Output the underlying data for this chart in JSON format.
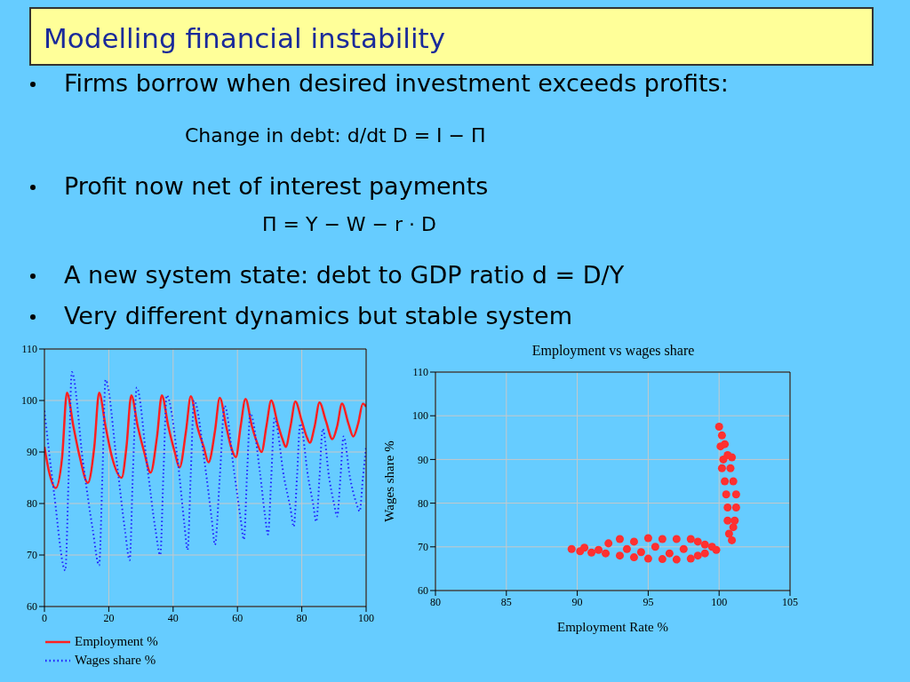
{
  "chart_data": [
    {
      "type": "other",
      "title": "Modelling financial instability",
      "annotations": [
        "Firms borrow when desired investment exceeds profits:",
        "Change in debt: d/dt D = I − Π",
        "Profit now net of interest payments",
        "Π = Y − W − r · D",
        "A new system state: debt to GDP ratio  d = D/Y",
        "Very different dynamics but stable system"
      ]
    },
    {
      "type": "line",
      "xlim": [
        0,
        100
      ],
      "xticks": [
        0,
        20,
        40,
        60,
        80,
        100
      ],
      "ylim": [
        60,
        110
      ],
      "yticks": [
        60,
        70,
        80,
        90,
        100,
        110
      ],
      "grid": true,
      "legend": "bottom",
      "series": [
        {
          "name": "Employment %",
          "color": "#ff2020",
          "line_style": "solid",
          "x": [
            0,
            1.5,
            3.5,
            5.5,
            7,
            9,
            11,
            13.5,
            15.5,
            17,
            19,
            21,
            24,
            25.5,
            27,
            29,
            31,
            33,
            35,
            36.5,
            38.5,
            40.5,
            42,
            44,
            45.5,
            47.5,
            49.5,
            51,
            53,
            54.5,
            56.5,
            58,
            59.5,
            61,
            62.5,
            64.5,
            66,
            67.5,
            69,
            70.5,
            72.5,
            74,
            75,
            76.5,
            78,
            80,
            81.5,
            82.5,
            84,
            85.5,
            87.5,
            89.5,
            91,
            92.5,
            94.5,
            96,
            97.5,
            99,
            100
          ],
          "values": [
            91,
            86,
            83,
            89,
            101.5,
            95,
            89,
            84,
            91,
            101.5,
            95,
            89,
            85,
            91,
            101,
            95,
            90,
            86,
            93,
            101,
            95,
            90,
            87,
            94,
            100.8,
            95,
            91,
            88,
            94,
            100.5,
            95,
            91,
            89,
            95,
            100.3,
            95,
            92,
            90,
            95,
            100,
            95.5,
            92.5,
            91,
            95,
            99.8,
            96,
            93,
            91.8,
            95,
            99.6,
            96,
            92.5,
            95,
            99.4,
            95.5,
            93,
            95.5,
            99.4,
            98.8
          ]
        },
        {
          "name": "Wages share %",
          "color": "#2020ff",
          "line_style": "dotted",
          "x": [
            0,
            3,
            6.5,
            7.5,
            8.5,
            12,
            15,
            17,
            18,
            19,
            22.5,
            25,
            26.5,
            27.5,
            28.7,
            32,
            34.5,
            36,
            37,
            38,
            41.5,
            43.5,
            44.5,
            45.5,
            46.5,
            50,
            52,
            53,
            54.5,
            56,
            59,
            61,
            62,
            63,
            64,
            67,
            68.5,
            69.5,
            70.5,
            71.5,
            74.5,
            76.5,
            77.5,
            78.5,
            79.5,
            82,
            83.5,
            84.5,
            85.5,
            86.5,
            88.5,
            90,
            91,
            92,
            93,
            95,
            97,
            98,
            99,
            100
          ],
          "values": [
            98,
            82,
            67,
            85,
            105.5,
            88,
            75,
            68,
            85,
            104,
            88,
            75,
            69,
            86,
            102.5,
            87,
            75,
            70,
            86,
            101,
            88,
            76,
            71,
            86,
            100,
            87,
            77,
            72,
            85,
            99,
            86,
            77,
            73,
            86,
            97.5,
            86,
            78,
            74,
            85,
            96.5,
            85,
            79,
            75.5,
            85,
            95.5,
            85,
            80,
            76.5,
            85,
            94.5,
            85,
            80,
            77.5,
            85,
            93,
            85,
            80,
            78.5,
            85,
            91
          ]
        }
      ]
    },
    {
      "type": "scatter",
      "title": "Employment vs wages share",
      "xlabel": "Employment Rate %",
      "ylabel": "Wages share %",
      "xlim": [
        80,
        105
      ],
      "xticks": [
        80,
        85,
        90,
        95,
        100,
        105
      ],
      "ylim": [
        60,
        110
      ],
      "yticks": [
        60,
        70,
        80,
        90,
        100,
        110
      ],
      "grid": true,
      "marker": "circle",
      "series": [
        {
          "color": "#ff3030",
          "x": [
            89.6,
            90.2,
            90.5,
            91,
            91.5,
            92,
            92.2,
            93,
            93,
            93.5,
            94,
            94,
            94.5,
            95,
            95,
            95.5,
            96,
            96,
            96.5,
            97,
            97,
            97.5,
            98,
            98,
            98.5,
            98.5,
            99,
            99,
            99.5,
            99.8,
            100,
            100.2,
            100.4,
            100.1,
            100.6,
            100.2,
            100.8,
            100.4,
            101,
            100.5,
            101.2,
            100.6,
            101.2,
            100.6,
            101.1,
            100.7,
            100.9,
            101,
            100.3,
            100.9
          ],
          "values": [
            69.5,
            69,
            69.8,
            68.7,
            69.3,
            68.5,
            70.8,
            71.8,
            68,
            69.5,
            71.2,
            67.6,
            68.8,
            72,
            67.3,
            70,
            71.8,
            67.2,
            68.5,
            71.8,
            67.1,
            69.5,
            71.8,
            67.3,
            71.2,
            68,
            70.5,
            68.5,
            70,
            69.3,
            97.5,
            95.5,
            93.5,
            93,
            91,
            88,
            88,
            85,
            85,
            82,
            82,
            79,
            79,
            76,
            76,
            73,
            71.5,
            74.5,
            90,
            90.5
          ]
        }
      ]
    }
  ]
}
